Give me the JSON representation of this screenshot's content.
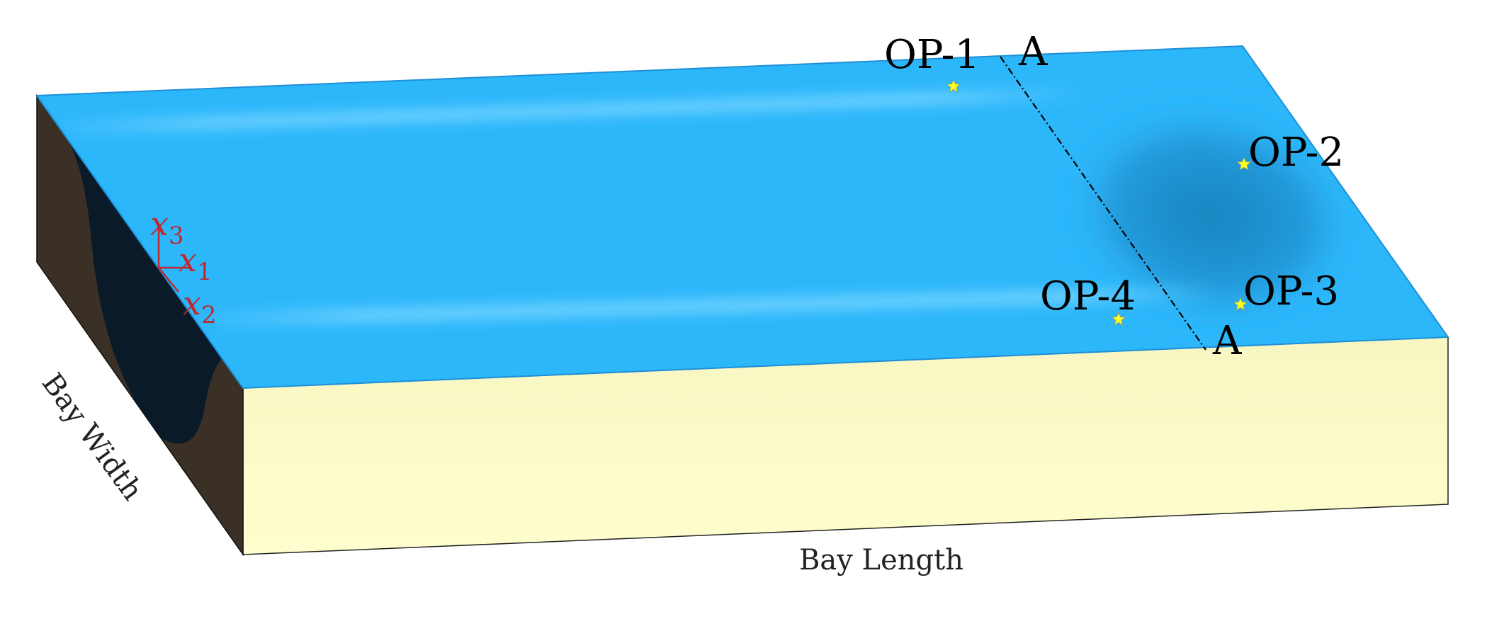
{
  "labels": {
    "op1": "OP-1",
    "op2": "OP-2",
    "op3": "OP-3",
    "op4": "OP-4",
    "section_top": "A",
    "section_bottom": "A",
    "bay_width": "Bay Width",
    "bay_length": "Bay Length"
  },
  "axes": {
    "x1_var": "x",
    "x1_sub": "1",
    "x2_var": "x",
    "x2_sub": "2",
    "x3_var": "x",
    "x3_sub": "3"
  },
  "colors": {
    "water": "#2db7fb",
    "water_edge": "#1e8fd6",
    "wake_shadow": "#1a84bd",
    "crest_light": "#5fcbff",
    "side_sand": "#fdfcc3",
    "end_wall": "#3b3026",
    "trough": "#0a1a28",
    "star": "#ffff22",
    "axes": "#c0282e",
    "section_line": "#000000"
  }
}
